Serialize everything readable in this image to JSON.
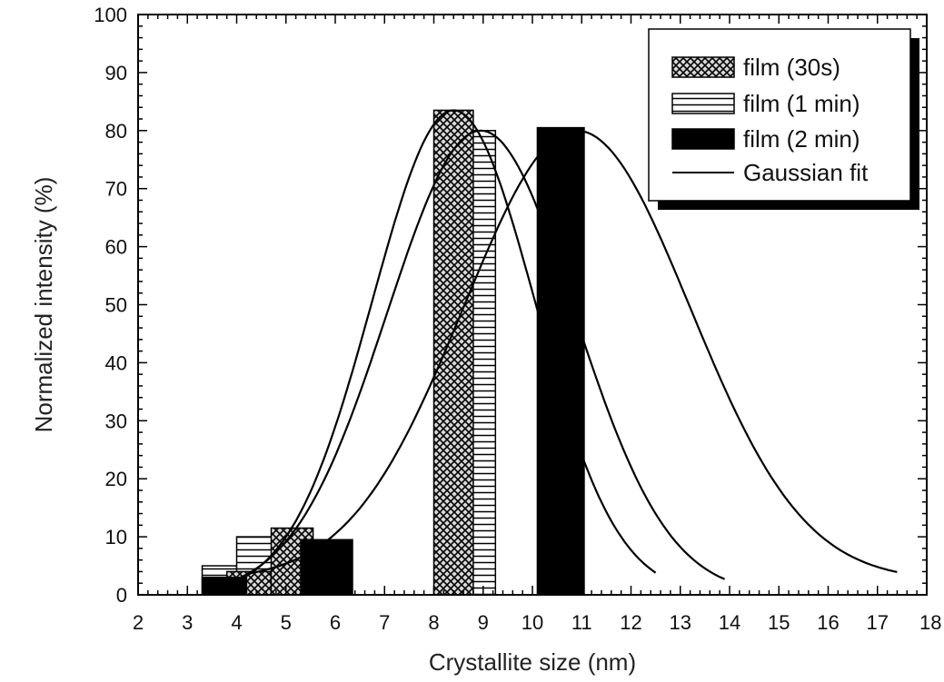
{
  "chart_data": {
    "type": "bar",
    "xlabel": "Crystallite size (nm)",
    "ylabel": "Normalized intensity (%)",
    "xlim": [
      2,
      18
    ],
    "ylim": [
      0,
      100
    ],
    "x_ticks": [
      2,
      3,
      4,
      5,
      6,
      7,
      8,
      9,
      10,
      11,
      12,
      13,
      14,
      15,
      16,
      17,
      18
    ],
    "y_ticks": [
      0,
      10,
      20,
      30,
      40,
      50,
      60,
      70,
      80,
      90,
      100
    ],
    "legend_position": "top-right",
    "legend": [
      {
        "label": "film (30s)",
        "symbol": "crosshatch"
      },
      {
        "label": "film (1 min)",
        "symbol": "horizontal-lines"
      },
      {
        "label": "film (2 min)",
        "symbol": "solid-black"
      },
      {
        "label": "Gaussian fit",
        "symbol": "line"
      }
    ],
    "series": [
      {
        "name": "film (1 min)",
        "pattern": "horizontal-lines",
        "bars": [
          {
            "x0": 3.3,
            "x1": 4.0,
            "y": 5
          },
          {
            "x0": 4.0,
            "x1": 4.95,
            "y": 10
          },
          {
            "x0": 8.7,
            "x1": 9.25,
            "y": 80
          }
        ]
      },
      {
        "name": "film (30s)",
        "pattern": "crosshatch",
        "bars": [
          {
            "x0": 3.8,
            "x1": 4.7,
            "y": 4
          },
          {
            "x0": 4.7,
            "x1": 5.55,
            "y": 11.5
          },
          {
            "x0": 8.0,
            "x1": 8.8,
            "y": 83.5
          }
        ]
      },
      {
        "name": "film (2 min)",
        "pattern": "solid-black",
        "bars": [
          {
            "x0": 3.3,
            "x1": 4.2,
            "y": 3
          },
          {
            "x0": 5.3,
            "x1": 6.35,
            "y": 9.5
          },
          {
            "x0": 10.1,
            "x1": 11.05,
            "y": 80.5
          }
        ]
      }
    ],
    "fits": [
      {
        "name": "Gaussian fit",
        "mu": 8.4,
        "sigma": 1.65,
        "amplitude": 83.5,
        "x_range": [
          3.3,
          12.5
        ]
      },
      {
        "name": "Gaussian fit",
        "mu": 8.95,
        "sigma": 1.9,
        "amplitude": 80,
        "x_range": [
          3.9,
          13.9
        ]
      },
      {
        "name": "Gaussian fit",
        "mu": 10.9,
        "sigma": 2.3,
        "amplitude": 80,
        "x_range": [
          4.2,
          17.4
        ],
        "baseline": 2.5
      }
    ]
  }
}
